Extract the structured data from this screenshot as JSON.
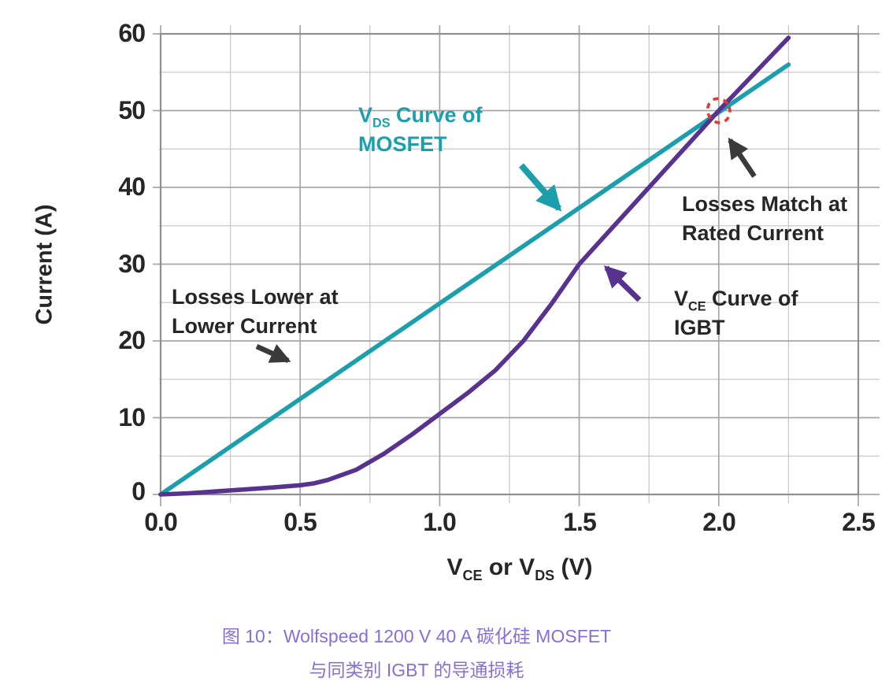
{
  "colors": {
    "teal": "#1C9FAD",
    "purple": "#57328F",
    "dark": "#3A3A3A",
    "red": "#E23935",
    "caption": "#8570D6",
    "text": "#262626",
    "grid_major": "#A6A6A6",
    "grid_minor": "#C9C9C9",
    "frame": "#8F8F8F"
  },
  "chart_data": {
    "type": "line",
    "xlabel_parts": {
      "v1": "V",
      "sub1": "CE",
      "mid": " or V",
      "sub2": "DS",
      "end": " (V)"
    },
    "ylabel": "Current (A)",
    "xlim": [
      0,
      2.5
    ],
    "ylim": [
      0,
      60
    ],
    "x_ticks": [
      0.0,
      0.5,
      1.0,
      1.5,
      2.0,
      2.5
    ],
    "x_tick_labels": [
      "0.0",
      "0.5",
      "1.0",
      "1.5",
      "2.0",
      "2.5"
    ],
    "y_ticks": [
      0,
      10,
      20,
      30,
      40,
      50,
      60
    ],
    "y_tick_labels": [
      "0",
      "10",
      "20",
      "30",
      "40",
      "50",
      "60"
    ],
    "x_minor_step": 0.25,
    "y_minor_step": 5,
    "grid": true,
    "legend_position": "none",
    "series": [
      {
        "name": "VDS Curve of MOSFET",
        "color": "#1C9FAD",
        "points": [
          [
            0,
            0
          ],
          [
            2.25,
            56
          ]
        ]
      },
      {
        "name": "VCE Curve of IGBT",
        "color": "#57328F",
        "points": [
          [
            0,
            0
          ],
          [
            0.1,
            0.15
          ],
          [
            0.2,
            0.4
          ],
          [
            0.3,
            0.65
          ],
          [
            0.4,
            0.9
          ],
          [
            0.5,
            1.2
          ],
          [
            0.55,
            1.45
          ],
          [
            0.6,
            1.9
          ],
          [
            0.7,
            3.2
          ],
          [
            0.8,
            5.3
          ],
          [
            0.9,
            7.8
          ],
          [
            1.0,
            10.5
          ],
          [
            1.1,
            13.2
          ],
          [
            1.2,
            16.2
          ],
          [
            1.3,
            20.0
          ],
          [
            1.4,
            24.8
          ],
          [
            1.5,
            30.0
          ],
          [
            1.6,
            34.0
          ],
          [
            1.7,
            38.0
          ],
          [
            1.8,
            42.0
          ],
          [
            1.9,
            46.0
          ],
          [
            2.0,
            50.0
          ],
          [
            2.1,
            53.8
          ],
          [
            2.25,
            59.5
          ]
        ]
      }
    ],
    "intersection_marker": {
      "x": 2.0,
      "y": 50,
      "color": "#E23935"
    }
  },
  "annotations": {
    "mosfet": {
      "v": "V",
      "sub": "DS",
      "rest": " Curve of",
      "line2": "MOSFET"
    },
    "igbt": {
      "v": "V",
      "sub": "CE",
      "rest": " Curve of",
      "line2": "IGBT"
    },
    "losses_match": {
      "line1": "Losses Match at",
      "line2": "Rated Current"
    },
    "losses_lower": {
      "line1": "Losses Lower at",
      "line2": "Lower Current"
    }
  },
  "caption": {
    "line1": "图 10：Wolfspeed 1200 V 40 A 碳化硅 MOSFET",
    "line2": "与同类别 IGBT 的导通损耗"
  }
}
